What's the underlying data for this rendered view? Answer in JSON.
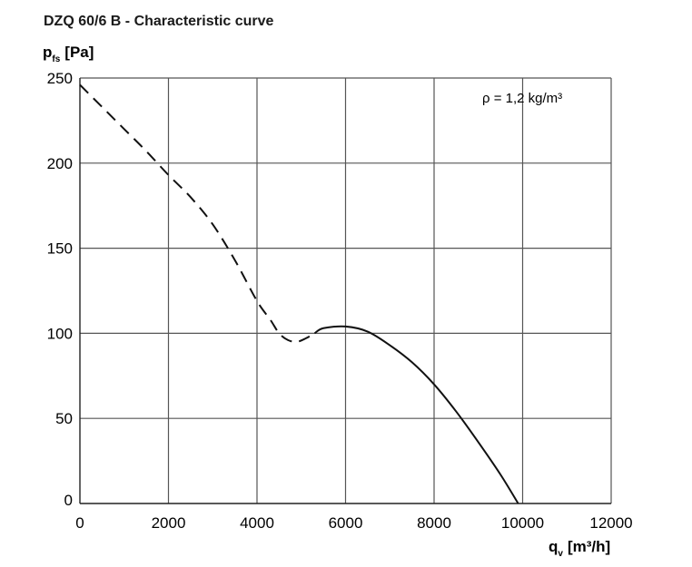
{
  "chart_data": {
    "type": "line",
    "title": "DZQ 60/6 B - Characteristic curve",
    "ylabel": {
      "symbol": "p",
      "subscript": "fs",
      "unit": "[Pa]"
    },
    "xlabel": {
      "symbol": "q",
      "subscript": "v",
      "unit": "[m³/h]"
    },
    "annotation": "ρ = 1,2 kg/m³",
    "xlim": [
      0,
      12000
    ],
    "ylim": [
      0,
      250
    ],
    "xticks": [
      0,
      2000,
      4000,
      6000,
      8000,
      10000,
      12000
    ],
    "yticks": [
      0,
      50,
      100,
      150,
      200,
      250
    ],
    "grid": true,
    "series": [
      {
        "style": "dashed",
        "x": [
          0,
          500,
          1000,
          1500,
          2000,
          2500,
          3000,
          3500,
          4000,
          4300,
          4500,
          4700,
          4900,
          5100,
          5300
        ],
        "y": [
          246,
          233,
          220,
          207,
          193,
          180,
          164,
          143,
          119,
          108,
          100,
          96,
          95,
          97,
          100
        ]
      },
      {
        "style": "solid",
        "x": [
          5300,
          5500,
          6000,
          6500,
          7000,
          7500,
          8000,
          8500,
          9000,
          9500,
          9900
        ],
        "y": [
          100,
          103,
          104,
          101,
          93,
          83,
          70,
          54,
          36,
          17,
          0
        ]
      }
    ]
  }
}
